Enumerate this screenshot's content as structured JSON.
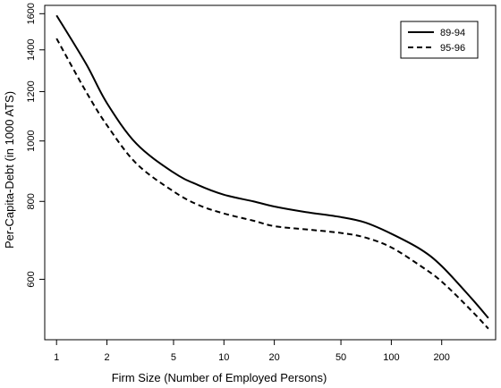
{
  "chart_data": {
    "type": "line",
    "xlabel": "Firm Size (Number of Employed Persons)",
    "ylabel": "Per-Capita-Debt (in 1000 ATS)",
    "x_scale": "log",
    "y_scale": "log",
    "xlim": [
      0.85,
      420
    ],
    "ylim": [
      480,
      1650
    ],
    "grid": false,
    "legend_position": "top-right",
    "x_ticks": [
      1,
      2,
      5,
      10,
      20,
      50,
      100,
      200
    ],
    "x_tick_labels": [
      "1",
      "2",
      "5",
      "10",
      "20",
      "50",
      "100",
      "200"
    ],
    "y_ticks": [
      600,
      800,
      1000,
      1200,
      1400,
      1600
    ],
    "y_tick_labels": [
      "600",
      "800",
      "1000",
      "1200",
      "1400",
      "1600"
    ],
    "series": [
      {
        "name": "89-94",
        "line_style": "solid",
        "x": [
          1,
          1.5,
          2,
          3,
          5,
          7,
          10,
          15,
          20,
          30,
          50,
          70,
          100,
          150,
          200,
          300,
          380
        ],
        "y": [
          1590,
          1330,
          1150,
          990,
          890,
          850,
          820,
          800,
          785,
          770,
          755,
          740,
          710,
          670,
          630,
          560,
          520
        ]
      },
      {
        "name": "95-96",
        "line_style": "dashed",
        "x": [
          1,
          1.5,
          2,
          3,
          5,
          7,
          10,
          15,
          20,
          30,
          50,
          70,
          100,
          150,
          200,
          300,
          380
        ],
        "y": [
          1460,
          1200,
          1060,
          920,
          830,
          790,
          765,
          745,
          730,
          722,
          712,
          700,
          675,
          630,
          595,
          535,
          500
        ]
      }
    ]
  }
}
